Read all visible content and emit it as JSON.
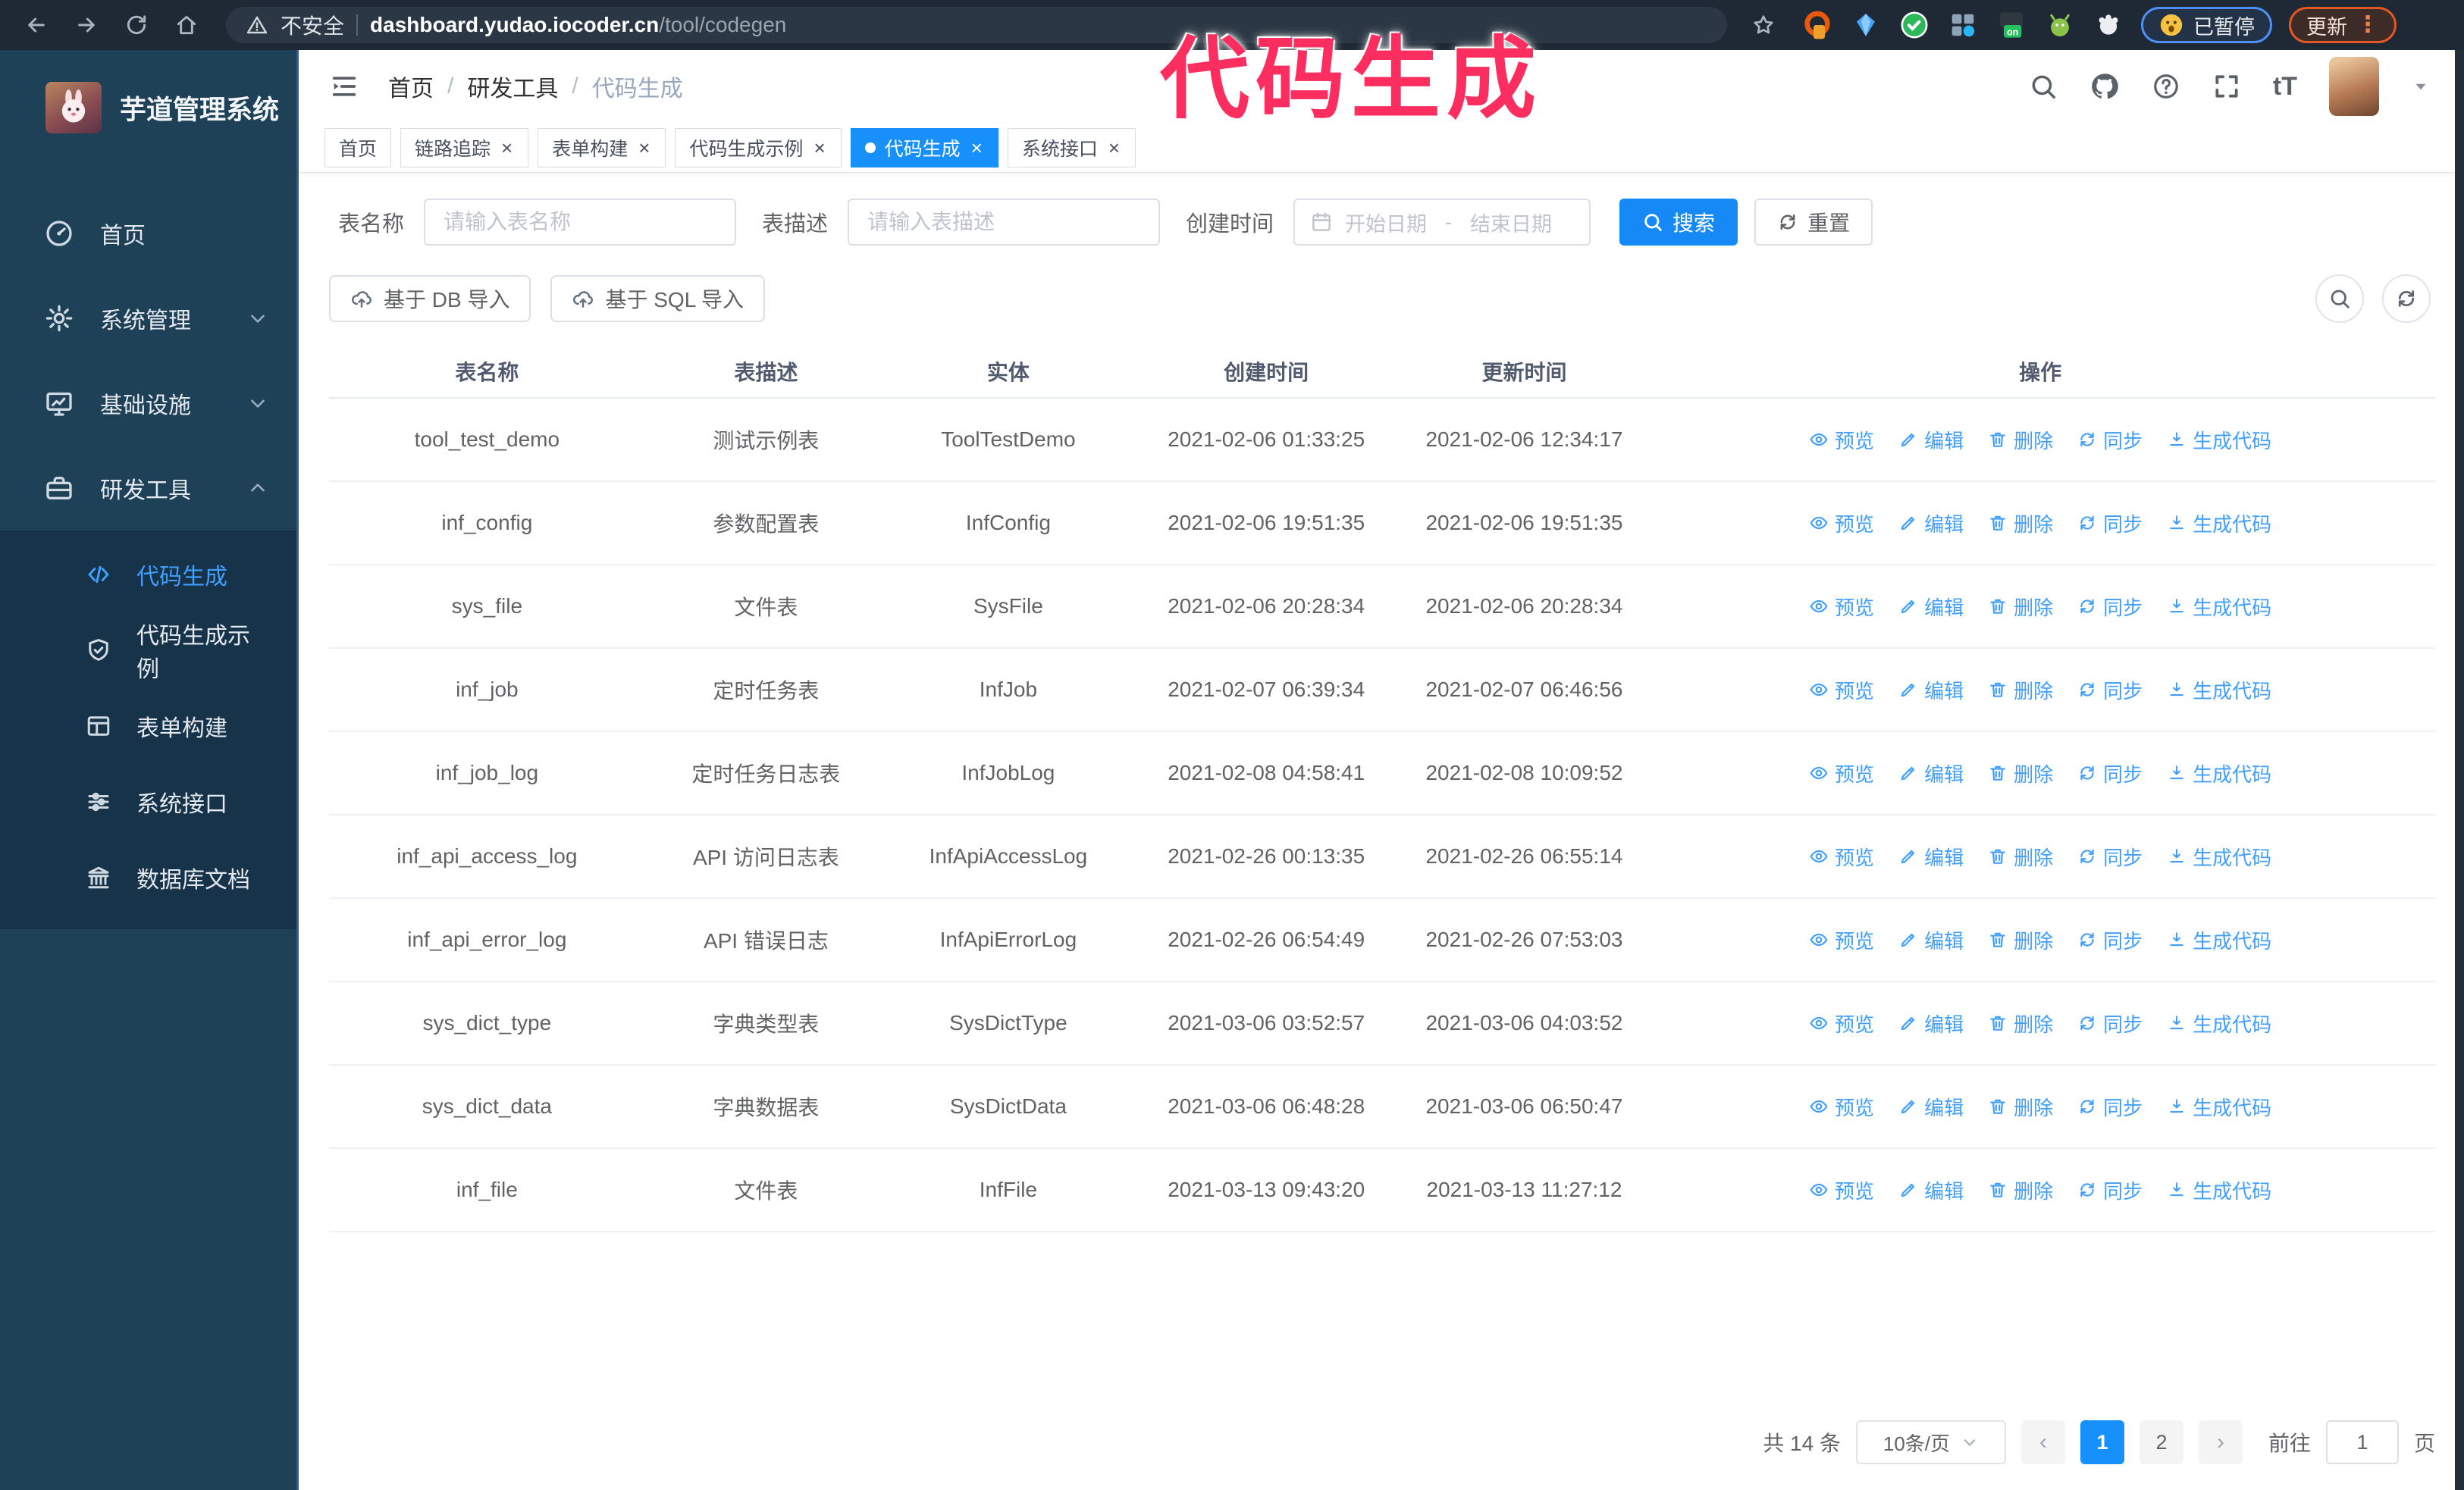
{
  "browser": {
    "security_label": "不安全",
    "url_domain": "dashboard.yudao.iocoder.cn",
    "url_path": "/tool/codegen",
    "paused_label": "已暂停",
    "update_label": "更新"
  },
  "watermark": {
    "text": "代码生成",
    "color": "#fb2e5f"
  },
  "sidebar": {
    "title": "芋道管理系统",
    "items": [
      {
        "label": "首页",
        "icon": "dashboard-icon",
        "chevron": ""
      },
      {
        "label": "系统管理",
        "icon": "gear-icon",
        "chevron": "down"
      },
      {
        "label": "基础设施",
        "icon": "monitor-icon",
        "chevron": "down"
      },
      {
        "label": "研发工具",
        "icon": "toolbox-icon",
        "chevron": "up"
      }
    ],
    "subitems": [
      {
        "label": "代码生成",
        "icon": "code-icon",
        "active": true
      },
      {
        "label": "代码生成示例",
        "icon": "shield-check-icon",
        "active": false
      },
      {
        "label": "表单构建",
        "icon": "form-icon",
        "active": false
      },
      {
        "label": "系统接口",
        "icon": "sliders-icon",
        "active": false
      },
      {
        "label": "数据库文档",
        "icon": "columns-icon",
        "active": false
      }
    ]
  },
  "header": {
    "breadcrumb": [
      "首页",
      "研发工具",
      "代码生成"
    ]
  },
  "tabs": [
    {
      "label": "首页",
      "closable": false,
      "active": false
    },
    {
      "label": "链路追踪",
      "closable": true,
      "active": false
    },
    {
      "label": "表单构建",
      "closable": true,
      "active": false
    },
    {
      "label": "代码生成示例",
      "closable": true,
      "active": false
    },
    {
      "label": "代码生成",
      "closable": true,
      "active": true
    },
    {
      "label": "系统接口",
      "closable": true,
      "active": false
    }
  ],
  "filters": {
    "name_label": "表名称",
    "name_placeholder": "请输入表名称",
    "desc_label": "表描述",
    "desc_placeholder": "请输入表描述",
    "time_label": "创建时间",
    "start_placeholder": "开始日期",
    "range_separator": "-",
    "end_placeholder": "结束日期",
    "search_label": "搜索",
    "reset_label": "重置"
  },
  "toolbar": {
    "db_import_label": "基于 DB 导入",
    "sql_import_label": "基于 SQL 导入"
  },
  "table": {
    "headers": [
      "表名称",
      "表描述",
      "实体",
      "创建时间",
      "更新时间",
      "操作"
    ],
    "actions": [
      {
        "label": "预览",
        "icon": "eye-icon"
      },
      {
        "label": "编辑",
        "icon": "edit-icon"
      },
      {
        "label": "删除",
        "icon": "delete-icon"
      },
      {
        "label": "同步",
        "icon": "sync-icon"
      },
      {
        "label": "生成代码",
        "icon": "download-icon"
      }
    ],
    "rows": [
      {
        "name": "tool_test_demo",
        "description": "测试示例表",
        "entity": "ToolTestDemo",
        "created": "2021-02-06 01:33:25",
        "updated": "2021-02-06 12:34:17"
      },
      {
        "name": "inf_config",
        "description": "参数配置表",
        "entity": "InfConfig",
        "created": "2021-02-06 19:51:35",
        "updated": "2021-02-06 19:51:35"
      },
      {
        "name": "sys_file",
        "description": "文件表",
        "entity": "SysFile",
        "created": "2021-02-06 20:28:34",
        "updated": "2021-02-06 20:28:34"
      },
      {
        "name": "inf_job",
        "description": "定时任务表",
        "entity": "InfJob",
        "created": "2021-02-07 06:39:34",
        "updated": "2021-02-07 06:46:56"
      },
      {
        "name": "inf_job_log",
        "description": "定时任务日志表",
        "entity": "InfJobLog",
        "created": "2021-02-08 04:58:41",
        "updated": "2021-02-08 10:09:52"
      },
      {
        "name": "inf_api_access_log",
        "description": "API 访问日志表",
        "entity": "InfApiAccessLog",
        "created": "2021-02-26 00:13:35",
        "updated": "2021-02-26 06:55:14"
      },
      {
        "name": "inf_api_error_log",
        "description": "API 错误日志",
        "entity": "InfApiErrorLog",
        "created": "2021-02-26 06:54:49",
        "updated": "2021-02-26 07:53:03"
      },
      {
        "name": "sys_dict_type",
        "description": "字典类型表",
        "entity": "SysDictType",
        "created": "2021-03-06 03:52:57",
        "updated": "2021-03-06 04:03:52"
      },
      {
        "name": "sys_dict_data",
        "description": "字典数据表",
        "entity": "SysDictData",
        "created": "2021-03-06 06:48:28",
        "updated": "2021-03-06 06:50:47"
      },
      {
        "name": "inf_file",
        "description": "文件表",
        "entity": "InfFile",
        "created": "2021-03-13 09:43:20",
        "updated": "2021-03-13 11:27:12"
      }
    ]
  },
  "pagination": {
    "total_text": "共 14 条",
    "page_size": "10条/页",
    "pages": [
      "1",
      "2"
    ],
    "active_page": "1",
    "goto_label": "前往",
    "goto_value": "1",
    "unit_label": "页"
  },
  "colors": {
    "primary": "#1890fb",
    "link": "#409eff",
    "sidebar_bg": "#1f4157",
    "submenu_bg": "#16334a",
    "watermark": "#fb2e5f",
    "browser_bar": "#1e2935"
  }
}
